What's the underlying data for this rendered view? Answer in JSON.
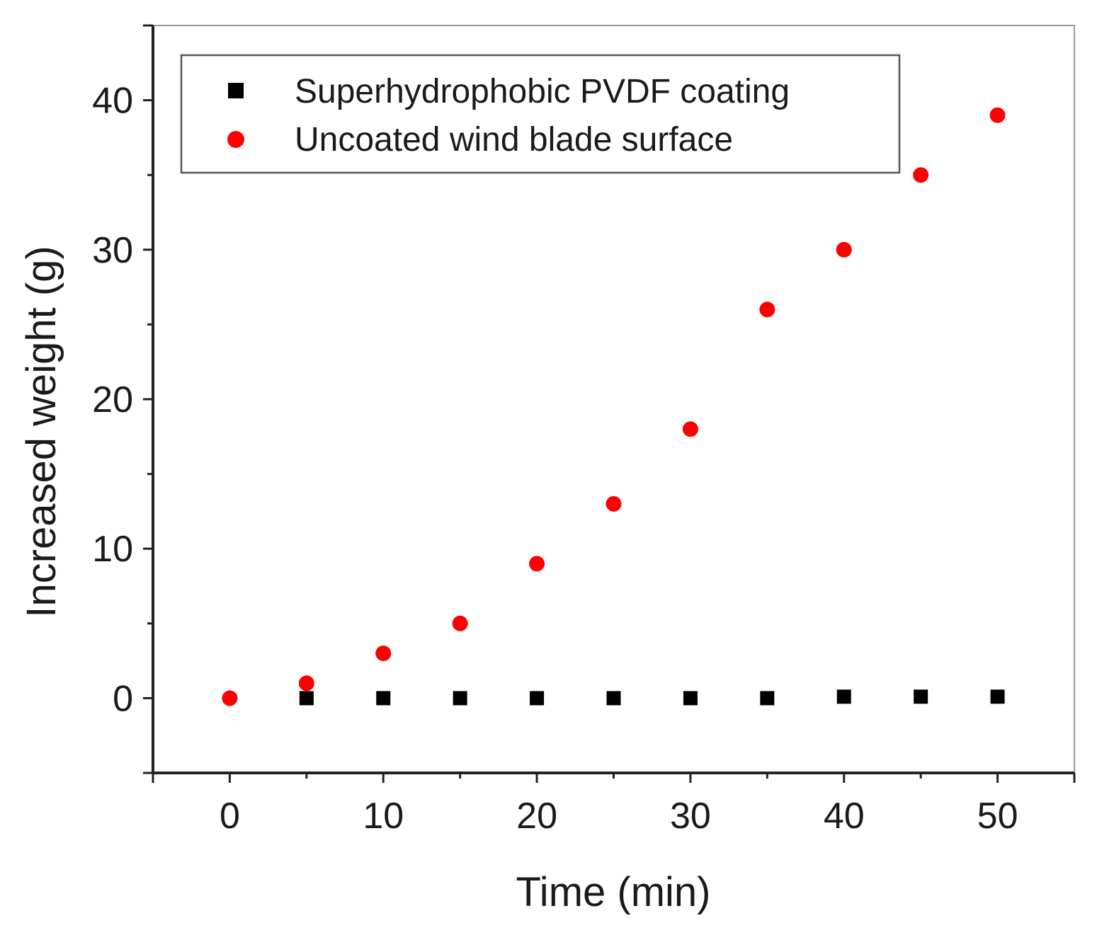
{
  "chart_data": {
    "type": "scatter",
    "title": "",
    "xlabel": "Time (min)",
    "ylabel": "Increased weight (g)",
    "xlim": [
      -5,
      55
    ],
    "ylim": [
      -5,
      45
    ],
    "xticks": [
      0,
      10,
      20,
      30,
      40,
      50
    ],
    "yticks": [
      0,
      10,
      20,
      30,
      40
    ],
    "xticks_minor": [
      5,
      15,
      25,
      35,
      45
    ],
    "yticks_minor": [
      5,
      15,
      25,
      35
    ],
    "grid": false,
    "legend_position": "top-left",
    "series": [
      {
        "name": "Superhydrophobic PVDF coating",
        "marker": "square",
        "color": "#000000",
        "x": [
          5,
          10,
          15,
          20,
          25,
          30,
          35,
          40,
          45,
          50
        ],
        "y": [
          0,
          0,
          0,
          0,
          0,
          0,
          0,
          0.1,
          0.1,
          0.1
        ]
      },
      {
        "name": "Uncoated wind blade surface",
        "marker": "circle",
        "color": "#ff0000",
        "x": [
          0,
          5,
          10,
          15,
          20,
          25,
          30,
          35,
          40,
          45,
          50
        ],
        "y": [
          0,
          1,
          3,
          5,
          9,
          13,
          18,
          26,
          30,
          35,
          39
        ]
      }
    ]
  }
}
